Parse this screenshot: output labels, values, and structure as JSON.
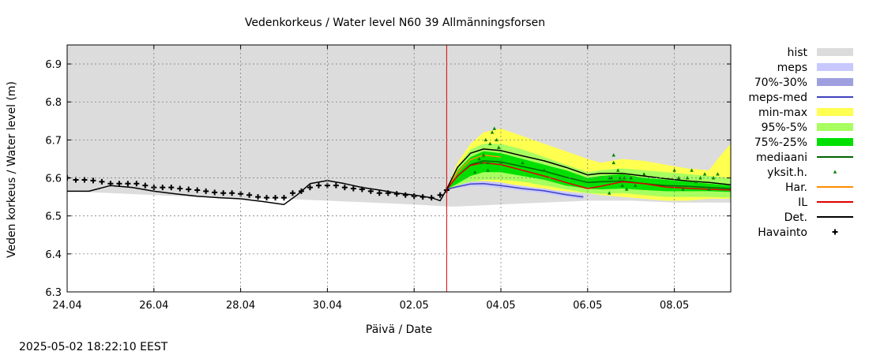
{
  "chart_data": {
    "type": "line",
    "title": "Vedenkorkeus / Water level   N60 39 Allmänningsforsen",
    "xlabel": "Päivä / Date",
    "ylabel": "Veden korkeus / Water level (m)",
    "timestamp": "2025-05-02 18:22:10 EEST",
    "x_domain": [
      0,
      15.3
    ],
    "ylim": [
      6.3,
      6.95
    ],
    "grid": true,
    "legend_position": "right",
    "forecast_start_day": 8.75,
    "x_ticks": [
      {
        "day": 0,
        "label": "24.04"
      },
      {
        "day": 2,
        "label": "26.04"
      },
      {
        "day": 4,
        "label": "28.04"
      },
      {
        "day": 6,
        "label": "30.04"
      },
      {
        "day": 8,
        "label": "02.05"
      },
      {
        "day": 10,
        "label": "04.05"
      },
      {
        "day": 12,
        "label": "06.05"
      },
      {
        "day": 14,
        "label": "08.05"
      }
    ],
    "y_ticks": [
      {
        "value": 6.3,
        "label": "6.3"
      },
      {
        "value": 6.4,
        "label": "6.4"
      },
      {
        "value": 6.5,
        "label": "6.5"
      },
      {
        "value": 6.6,
        "label": "6.6"
      },
      {
        "value": 6.7,
        "label": "6.7"
      },
      {
        "value": 6.8,
        "label": "6.8"
      },
      {
        "value": 6.9,
        "label": "6.9"
      }
    ],
    "colors": {
      "hist": "#dcdcdc",
      "meps": "#c8c8ff",
      "p70_30": "#9f9fe0",
      "meps_med": "#4040c0",
      "min_max": "#ffff50",
      "p95_5": "#a8ff60",
      "p75_25": "#00e000",
      "mediaani": "#006400",
      "yksit_h": "#008000",
      "har": "#ff8c00",
      "il": "#e00000",
      "det": "#000000",
      "havainto": "#000000",
      "forecast_line": "#e00000"
    },
    "legend": [
      {
        "key": "hist",
        "label": "hist",
        "style": "band"
      },
      {
        "key": "meps",
        "label": "meps",
        "style": "band"
      },
      {
        "key": "p70_30",
        "label": "70%-30%",
        "style": "band"
      },
      {
        "key": "meps_med",
        "label": "meps-med",
        "style": "line"
      },
      {
        "key": "min_max",
        "label": "min-max",
        "style": "band"
      },
      {
        "key": "p95_5",
        "label": "95%-5%",
        "style": "band"
      },
      {
        "key": "p75_25",
        "label": "75%-25%",
        "style": "band"
      },
      {
        "key": "mediaani",
        "label": "mediaani",
        "style": "line"
      },
      {
        "key": "yksit_h",
        "label": "yksit.h.",
        "style": "triangle"
      },
      {
        "key": "har",
        "label": "Har.",
        "style": "line"
      },
      {
        "key": "il",
        "label": "IL",
        "style": "line"
      },
      {
        "key": "det",
        "label": "Det.",
        "style": "line"
      },
      {
        "key": "havainto",
        "label": "Havainto",
        "style": "plus"
      }
    ],
    "series": {
      "hist_band": {
        "x": [
          0,
          1,
          2,
          3,
          4,
          5,
          6,
          7,
          8,
          8.75,
          9,
          10,
          11,
          12,
          13,
          14,
          15,
          15.3
        ],
        "upper": [
          6.95,
          6.95,
          6.95,
          6.95,
          6.95,
          6.95,
          6.95,
          6.95,
          6.95,
          6.95,
          6.95,
          6.95,
          6.95,
          6.95,
          6.95,
          6.95,
          6.95,
          6.95
        ],
        "lower": [
          6.565,
          6.56,
          6.555,
          6.55,
          6.545,
          6.545,
          6.54,
          6.535,
          6.53,
          6.525,
          6.525,
          6.53,
          6.535,
          6.54,
          6.54,
          6.535,
          6.535,
          6.535
        ]
      },
      "min_max": {
        "x": [
          8.75,
          9.0,
          9.3,
          9.6,
          10.0,
          10.5,
          11.0,
          11.5,
          12.0,
          12.3,
          12.8,
          13.3,
          13.8,
          14.3,
          14.8,
          15.0,
          15.3
        ],
        "upper": [
          6.57,
          6.64,
          6.69,
          6.72,
          6.73,
          6.71,
          6.69,
          6.67,
          6.65,
          6.64,
          6.65,
          6.645,
          6.635,
          6.625,
          6.62,
          6.65,
          6.69
        ],
        "lower": [
          6.57,
          6.575,
          6.585,
          6.585,
          6.585,
          6.58,
          6.57,
          6.565,
          6.56,
          6.555,
          6.55,
          6.545,
          6.54,
          6.54,
          6.545,
          6.545,
          6.545
        ]
      },
      "p95_5": {
        "x": [
          8.75,
          9.0,
          9.3,
          9.6,
          10.0,
          10.5,
          11.0,
          11.5,
          12.0,
          12.3,
          12.8,
          13.3,
          13.8,
          14.3,
          14.8,
          15.3
        ],
        "upper": [
          6.57,
          6.63,
          6.675,
          6.69,
          6.69,
          6.675,
          6.655,
          6.635,
          6.615,
          6.62,
          6.625,
          6.62,
          6.615,
          6.61,
          6.605,
          6.6
        ],
        "lower": [
          6.57,
          6.578,
          6.59,
          6.595,
          6.595,
          6.59,
          6.58,
          6.57,
          6.56,
          6.558,
          6.56,
          6.555,
          6.55,
          6.55,
          6.55,
          6.548
        ]
      },
      "p75_25": {
        "x": [
          8.75,
          9.0,
          9.3,
          9.6,
          10.0,
          10.5,
          11.0,
          11.5,
          12.0,
          12.3,
          12.8,
          13.3,
          13.8,
          14.3,
          14.8,
          15.3
        ],
        "upper": [
          6.57,
          6.62,
          6.655,
          6.67,
          6.665,
          6.65,
          6.635,
          6.62,
          6.6,
          6.605,
          6.61,
          6.6,
          6.595,
          6.59,
          6.585,
          6.58
        ],
        "lower": [
          6.57,
          6.585,
          6.605,
          6.615,
          6.615,
          6.605,
          6.595,
          6.58,
          6.572,
          6.57,
          6.572,
          6.568,
          6.565,
          6.565,
          6.565,
          6.563
        ]
      },
      "meps_band": {
        "x": [
          8.75,
          9.0,
          9.3,
          9.6,
          10.0,
          10.5,
          11.0,
          11.5,
          11.9
        ],
        "upper": [
          6.57,
          6.58,
          6.59,
          6.592,
          6.588,
          6.578,
          6.572,
          6.562,
          6.556
        ],
        "lower": [
          6.57,
          6.574,
          6.578,
          6.578,
          6.574,
          6.566,
          6.56,
          6.55,
          6.544
        ]
      },
      "meps_med": {
        "x": [
          8.75,
          9.0,
          9.3,
          9.6,
          10.0,
          10.5,
          11.0,
          11.5,
          11.9
        ],
        "y": [
          6.57,
          6.577,
          6.584,
          6.585,
          6.58,
          6.572,
          6.566,
          6.556,
          6.55
        ]
      },
      "mediaani": {
        "x": [
          8.75,
          9.0,
          9.3,
          9.6,
          10.0,
          10.5,
          11.0,
          11.5,
          12.0,
          12.3,
          12.8,
          13.3,
          13.8,
          14.3,
          14.8,
          15.3
        ],
        "y": [
          6.57,
          6.605,
          6.635,
          6.645,
          6.642,
          6.63,
          6.618,
          6.602,
          6.588,
          6.59,
          6.592,
          6.585,
          6.58,
          6.578,
          6.575,
          6.572
        ]
      },
      "har": {
        "x": [
          8.75,
          9.0,
          9.3,
          9.6,
          10.0
        ],
        "y": [
          6.57,
          6.615,
          6.648,
          6.66,
          6.655
        ]
      },
      "il": {
        "x": [
          8.75,
          9.0,
          9.3,
          9.6,
          10.0,
          10.5,
          11.0,
          11.5,
          12.0,
          12.3,
          12.8,
          13.3,
          13.8,
          14.3,
          14.8,
          15.3
        ],
        "y": [
          6.57,
          6.605,
          6.633,
          6.64,
          6.635,
          6.62,
          6.605,
          6.588,
          6.572,
          6.578,
          6.59,
          6.585,
          6.576,
          6.573,
          6.57,
          6.568
        ]
      },
      "det": {
        "x": [
          0,
          0.5,
          1.0,
          1.5,
          2.0,
          2.5,
          3.0,
          3.5,
          4.0,
          4.5,
          5.0,
          5.3,
          5.6,
          6.0,
          6.4,
          6.8,
          7.2,
          7.6,
          8.0,
          8.4,
          8.6,
          8.75,
          9.0,
          9.3,
          9.6,
          10.0,
          10.5,
          11.0,
          11.5,
          12.0,
          12.3,
          12.8,
          13.3,
          13.8,
          14.3,
          14.8,
          15.3
        ],
        "y": [
          6.565,
          6.565,
          6.58,
          6.575,
          6.565,
          6.558,
          6.552,
          6.548,
          6.545,
          6.538,
          6.53,
          6.555,
          6.585,
          6.593,
          6.585,
          6.575,
          6.568,
          6.56,
          6.555,
          6.548,
          6.54,
          6.57,
          6.628,
          6.665,
          6.676,
          6.672,
          6.658,
          6.645,
          6.628,
          6.608,
          6.612,
          6.612,
          6.605,
          6.598,
          6.592,
          6.588,
          6.582
        ]
      },
      "havainto": {
        "x": [
          0,
          0.2,
          0.4,
          0.6,
          0.8,
          1.0,
          1.2,
          1.4,
          1.6,
          1.8,
          2.0,
          2.2,
          2.4,
          2.6,
          2.8,
          3.0,
          3.2,
          3.4,
          3.6,
          3.8,
          4.0,
          4.2,
          4.4,
          4.6,
          4.8,
          5.0,
          5.2,
          5.4,
          5.6,
          5.8,
          6.0,
          6.2,
          6.4,
          6.6,
          6.8,
          7.0,
          7.2,
          7.4,
          7.6,
          7.8,
          8.0,
          8.2,
          8.4,
          8.6,
          8.75
        ],
        "y": [
          6.6,
          6.595,
          6.595,
          6.593,
          6.59,
          6.585,
          6.585,
          6.585,
          6.585,
          6.58,
          6.575,
          6.575,
          6.575,
          6.572,
          6.57,
          6.568,
          6.565,
          6.562,
          6.56,
          6.56,
          6.558,
          6.555,
          6.55,
          6.548,
          6.548,
          6.548,
          6.56,
          6.565,
          6.575,
          6.58,
          6.58,
          6.58,
          6.575,
          6.572,
          6.57,
          6.565,
          6.56,
          6.56,
          6.558,
          6.555,
          6.552,
          6.55,
          6.548,
          6.555,
          6.568
        ]
      },
      "yksit_h": {
        "x": [
          9.4,
          9.5,
          9.55,
          9.6,
          9.65,
          9.7,
          9.7,
          9.75,
          9.8,
          9.85,
          9.9,
          9.95,
          10.0,
          10.5,
          11.0,
          12.5,
          12.5,
          12.55,
          12.6,
          12.6,
          12.7,
          12.75,
          12.8,
          12.85,
          12.9,
          13.0,
          13.1,
          13.3,
          14.0,
          14.1,
          14.2,
          14.3,
          14.4,
          14.5,
          14.6,
          14.7,
          14.8,
          14.9,
          15.0
        ],
        "y": [
          6.615,
          6.65,
          6.64,
          6.66,
          6.7,
          6.64,
          6.62,
          6.69,
          6.72,
          6.73,
          6.7,
          6.68,
          6.64,
          6.64,
          6.62,
          6.6,
          6.56,
          6.6,
          6.64,
          6.66,
          6.62,
          6.6,
          6.58,
          6.6,
          6.57,
          6.6,
          6.58,
          6.61,
          6.62,
          6.6,
          6.57,
          6.6,
          6.62,
          6.59,
          6.6,
          6.61,
          6.57,
          6.6,
          6.61
        ]
      }
    }
  }
}
